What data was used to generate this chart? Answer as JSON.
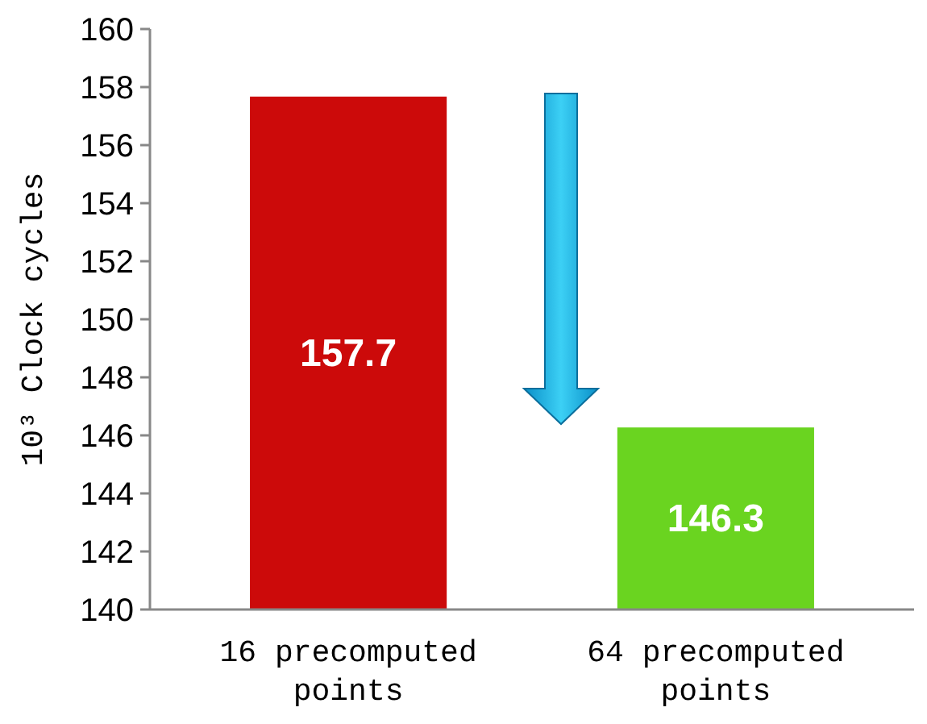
{
  "chart_data": {
    "type": "bar",
    "ylabel": "10³ Clock cycles",
    "categories": [
      "16 precomputed points",
      "64 precomputed points"
    ],
    "values": [
      157.7,
      146.3
    ],
    "colors": [
      "#cc0a0a",
      "#6ad420"
    ],
    "ylim": [
      140,
      160
    ],
    "yticks": [
      140,
      142,
      144,
      146,
      148,
      150,
      152,
      154,
      156,
      158,
      160
    ],
    "data_labels": true,
    "grid": false
  }
}
